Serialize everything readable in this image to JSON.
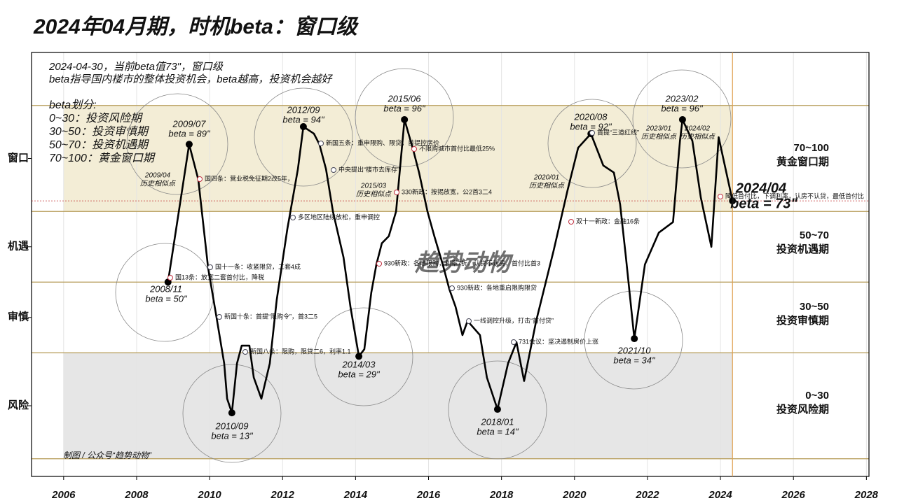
{
  "chart_data": {
    "type": "line",
    "title": "2024年04月期，时机beta：窗口级",
    "notes": [
      "2024-04-30，当前beta值73\"，窗口级",
      "beta指导国内楼市的整体投资机会，beta越高，投资机会越好",
      "beta划分:",
      "0~30：投资风险期",
      "30~50：投资审慎期",
      "50~70：投资机遇期",
      "70~100：黄金窗口期"
    ],
    "credit": "制图 / 公众号“趋势动物”",
    "watermark": "趋势动物",
    "zones": [
      {
        "range": "70~100",
        "name": "黄金窗口期"
      },
      {
        "range": "50~70",
        "name": "投资机遇期"
      },
      {
        "range": "30~50",
        "name": "投资审慎期"
      },
      {
        "range": "0~30",
        "name": "投资风险期"
      }
    ],
    "bands": [
      [
        70,
        100
      ],
      [
        0,
        30
      ]
    ],
    "hlines": [
      0,
      30,
      50,
      70,
      100
    ],
    "xlim": [
      2005.12,
      2028.07
    ],
    "ylim": [
      -5,
      115
    ],
    "xticks": [
      2006,
      2008,
      2010,
      2012,
      2014,
      2016,
      2018,
      2020,
      2022,
      2024,
      2026,
      2028
    ],
    "yticks": [
      {
        "value": 85,
        "label": "窗口"
      },
      {
        "value": 60,
        "label": "机遇"
      },
      {
        "value": 40,
        "label": "审慎"
      },
      {
        "value": 15,
        "label": "风险"
      }
    ],
    "color": "#000000",
    "x": [
      2008.86,
      2009.44,
      2009.69,
      2009.96,
      2010.19,
      2010.4,
      2010.48,
      2010.61,
      2010.75,
      2010.88,
      2011.09,
      2011.21,
      2011.42,
      2011.65,
      2011.84,
      2012.13,
      2012.42,
      2012.57,
      2012.86,
      2013.01,
      2013.19,
      2013.38,
      2013.67,
      2013.86,
      2014.09,
      2014.24,
      2014.43,
      2014.57,
      2014.72,
      2014.91,
      2015.11,
      2015.34,
      2015.59,
      2015.74,
      2015.97,
      2016.16,
      2016.39,
      2016.57,
      2016.74,
      2016.93,
      2017.07,
      2017.41,
      2017.6,
      2017.89,
      2018.18,
      2018.41,
      2018.62,
      2018.95,
      2019.43,
      2019.81,
      2020.1,
      2020.45,
      2020.79,
      2021.08,
      2021.25,
      2021.41,
      2021.64,
      2021.93,
      2022.31,
      2022.7,
      2022.89,
      2022.96,
      2023.23,
      2023.46,
      2023.75,
      2023.95,
      2024.33
    ],
    "values": [
      50,
      89,
      79,
      54,
      40,
      27,
      17,
      13,
      27,
      32,
      32,
      23,
      17,
      27,
      45,
      65,
      82,
      94,
      92,
      89,
      82,
      70,
      57,
      43,
      29,
      31,
      47,
      55,
      61,
      63,
      70,
      96,
      87,
      81,
      70,
      63,
      55,
      48,
      43,
      35,
      39,
      35,
      23,
      14,
      27,
      33,
      22,
      39,
      59,
      76,
      88,
      92,
      83,
      81,
      72,
      57,
      34,
      55,
      64,
      67,
      90,
      96,
      90,
      74,
      60,
      91,
      73
    ],
    "extremes": [
      {
        "date": "2008/11",
        "label": "beta = 50\""
      },
      {
        "date": "2009/07",
        "label": "beta = 89\""
      },
      {
        "date": "2010/09",
        "label": "beta = 13\""
      },
      {
        "date": "2012/09",
        "label": "beta = 94\""
      },
      {
        "date": "2014/03",
        "label": "beta = 29\""
      },
      {
        "date": "2015/06",
        "label": "beta = 96\""
      },
      {
        "date": "2018/01",
        "label": "beta = 14\""
      },
      {
        "date": "2020/08",
        "label": "beta = 92\""
      },
      {
        "date": "2021/10",
        "label": "beta = 34\""
      },
      {
        "date": "2023/02",
        "label": "beta = 96\""
      },
      {
        "date": "2024/04",
        "label": "beta = 73\""
      }
    ],
    "similar": [
      {
        "date": "2009/04",
        "label": "历史相似点"
      },
      {
        "date": "2015/03",
        "label": "历史相似点"
      },
      {
        "date": "2020/01",
        "label": "历史相似点"
      },
      {
        "date": "2023/01",
        "label": "历史相似点"
      },
      {
        "date": "2024/02",
        "label": "历史相似点"
      }
    ],
    "events": [
      "国13条：放宽二套首付比，降税",
      "国四条：营业税免征期2改5年，",
      "国十一条：收紧限贷，二套4成",
      "新国十条：首提“限购令”，首3二5",
      "新国八条：限购，限贷二6，利率1.1",
      "多区地区陆续放松，重申调控",
      "新国五条：重申限购、限贷，首提控房价",
      "中央提出“楼市去库存”",
      "330新政：按揭放宽，公2首3二4",
      "不限购城市首付比最低25%",
      "930新政：各地限购，利率7折，认贷不认房，首付比首3",
      "930新政：各地重启限购限贷",
      "一线调控升级，打击“首付贷”",
      "731会议：坚决遏制房价上涨",
      "首提“三道红线”",
      "双十一新政：金融16条",
      "降低首付比，下调利率，认房不认贷，最低首付比"
    ]
  }
}
